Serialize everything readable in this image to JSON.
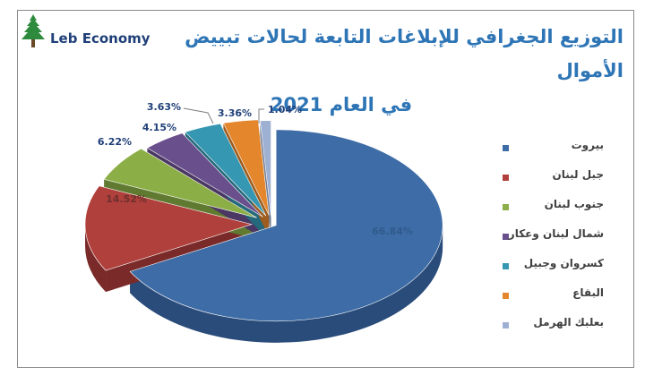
{
  "logo": {
    "text": "Leb Economy",
    "icon": "cedar-tree-icon"
  },
  "title": {
    "line1": "التوزيع الجغرافي للإبلاغات التابعة لحالات تبييض الأموال",
    "line2": "في العام 2021"
  },
  "colors": {
    "title": "#2e75b6",
    "logo_text": "#1f3f78"
  },
  "chart_data": {
    "type": "pie",
    "title": "التوزيع الجغرافي للإبلاغات التابعة لحالات تبييض الأموال في العام 2021",
    "style": "3d-exploded",
    "legend_position": "right",
    "slices": [
      {
        "label": "بيروت",
        "value": 66.84,
        "display": "66.84%",
        "color": "#3e6ca6",
        "side": "#2a4c7a"
      },
      {
        "label": "جبل لبنان",
        "value": 14.52,
        "display": "14.52%",
        "color": "#b0403c",
        "side": "#7a2b29"
      },
      {
        "label": "جنوب لبنان",
        "value": 6.22,
        "display": "6.22%",
        "color": "#8cae47",
        "side": "#617a31"
      },
      {
        "label": "شمال لبنان وعكار",
        "value": 4.15,
        "display": "4.15%",
        "color": "#6a4f8d",
        "side": "#4a3763"
      },
      {
        "label": "كسروان وجبيل",
        "value": 3.63,
        "display": "3.63%",
        "color": "#3597b2",
        "side": "#25697c"
      },
      {
        "label": "البقاع",
        "value": 3.36,
        "display": "3.36%",
        "color": "#e3862c",
        "side": "#9e5d1f"
      },
      {
        "label": "بعلبك الهرمل",
        "value": 1.04,
        "display": "1.04%",
        "color": "#9fb1d3",
        "side": "#6f7c94"
      }
    ]
  }
}
